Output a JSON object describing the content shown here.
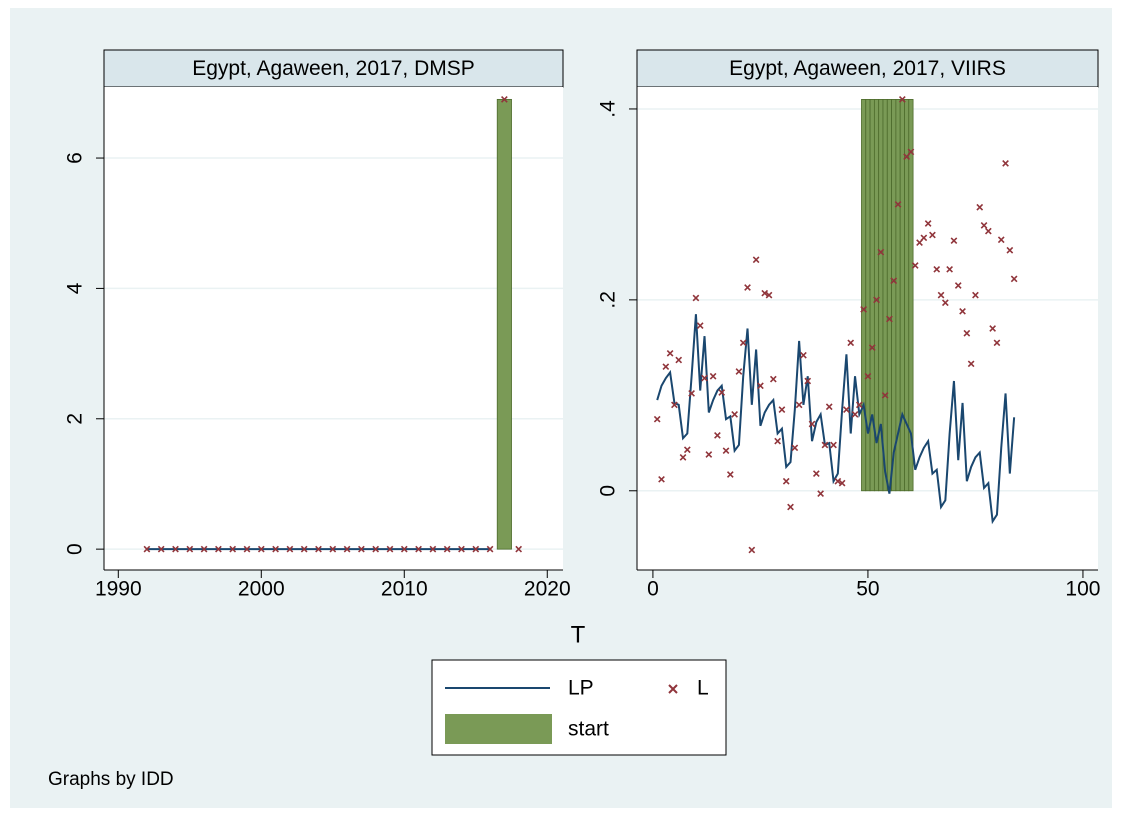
{
  "chart_data": [
    {
      "type": "combo",
      "title": "Egypt, Agaween, 2017, DMSP",
      "x": [
        1992,
        1993,
        1994,
        1995,
        1996,
        1997,
        1998,
        1999,
        2000,
        2001,
        2002,
        2003,
        2004,
        2005,
        2006,
        2007,
        2008,
        2009,
        2010,
        2011,
        2012,
        2013,
        2014,
        2015,
        2016,
        2017,
        2018
      ],
      "series": [
        {
          "name": "LP",
          "kind": "line",
          "color": "#1a476f",
          "values": [
            0,
            0,
            0,
            0,
            0,
            0,
            0,
            0,
            0,
            0,
            0,
            0,
            0,
            0,
            0,
            0,
            0,
            0,
            0,
            0,
            0,
            0,
            0,
            0,
            0,
            null,
            null
          ]
        },
        {
          "name": "L",
          "kind": "scatter",
          "color": "#90353b",
          "values": [
            0,
            0,
            0,
            0,
            0,
            0,
            0,
            0,
            0,
            0,
            0,
            0,
            0,
            0,
            0,
            0,
            0,
            0,
            0,
            0,
            0,
            0,
            0,
            0,
            0,
            6.9,
            0
          ]
        },
        {
          "name": "start",
          "kind": "bar",
          "color": "#7a9a56",
          "values": [
            null,
            null,
            null,
            null,
            null,
            null,
            null,
            null,
            null,
            null,
            null,
            null,
            null,
            null,
            null,
            null,
            null,
            null,
            null,
            null,
            null,
            null,
            null,
            null,
            null,
            6.9,
            null
          ]
        }
      ],
      "xlim": [
        1989,
        2021.1
      ],
      "xticks": [
        1990,
        2000,
        2010,
        2020
      ],
      "ylim": [
        -0.32,
        7.09
      ],
      "yticks": [
        0,
        2,
        4,
        6
      ],
      "grid": true
    },
    {
      "type": "combo",
      "title": "Egypt, Agaween, 2017, VIIRS",
      "x": [
        1,
        2,
        3,
        4,
        5,
        6,
        7,
        8,
        9,
        10,
        11,
        12,
        13,
        14,
        15,
        16,
        17,
        18,
        19,
        20,
        21,
        22,
        23,
        24,
        25,
        26,
        27,
        28,
        29,
        30,
        31,
        32,
        33,
        34,
        35,
        36,
        37,
        38,
        39,
        40,
        41,
        42,
        43,
        44,
        45,
        46,
        47,
        48,
        49,
        50,
        51,
        52,
        53,
        54,
        55,
        56,
        57,
        58,
        59,
        60,
        61,
        62,
        63,
        64,
        65,
        66,
        67,
        68,
        69,
        70,
        71,
        72,
        73,
        74,
        75,
        76,
        77,
        78,
        79,
        80,
        81,
        82,
        83,
        84
      ],
      "series": [
        {
          "name": "LP",
          "kind": "line",
          "color": "#1a476f",
          "values": [
            0.095,
            0.11,
            0.118,
            0.124,
            0.092,
            0.09,
            0.055,
            0.06,
            0.12,
            0.185,
            0.105,
            0.162,
            0.082,
            0.095,
            0.105,
            0.11,
            0.075,
            0.078,
            0.042,
            0.048,
            0.12,
            0.17,
            0.09,
            0.148,
            0.068,
            0.082,
            0.09,
            0.095,
            0.06,
            0.065,
            0.025,
            0.03,
            0.085,
            0.157,
            0.09,
            0.12,
            0.052,
            0.072,
            0.08,
            0.048,
            0.05,
            0.01,
            0.018,
            0.085,
            0.143,
            0.06,
            0.12,
            0.08,
            0.09,
            0.06,
            0.08,
            0.05,
            0.07,
            0.02,
            -0.003,
            0.04,
            0.06,
            0.08,
            0.07,
            0.06,
            0.022,
            0.035,
            0.045,
            0.052,
            0.018,
            0.022,
            -0.017,
            -0.01,
            0.06,
            0.115,
            0.032,
            0.092,
            0.01,
            0.025,
            0.035,
            0.04,
            0.003,
            0.008,
            -0.032,
            -0.025,
            0.045,
            0.102,
            0.018,
            0.077
          ]
        },
        {
          "name": "L",
          "kind": "scatter",
          "color": "#90353b",
          "values": [
            0.075,
            0.012,
            0.13,
            0.144,
            0.09,
            0.137,
            0.035,
            0.043,
            0.102,
            0.202,
            0.173,
            0.118,
            0.038,
            0.12,
            0.058,
            0.103,
            0.042,
            0.017,
            0.08,
            0.125,
            0.155,
            0.213,
            -0.062,
            0.242,
            0.11,
            0.207,
            0.205,
            0.117,
            0.052,
            0.085,
            0.01,
            -0.017,
            0.045,
            0.09,
            0.142,
            0.115,
            0.07,
            0.018,
            -0.003,
            0.048,
            0.088,
            0.048,
            0.01,
            0.008,
            0.085,
            0.155,
            0.08,
            0.09,
            0.19,
            0.12,
            0.15,
            0.2,
            0.25,
            0.1,
            0.18,
            0.22,
            0.3,
            0.41,
            0.35,
            0.355,
            0.236,
            0.26,
            0.265,
            0.28,
            0.268,
            0.232,
            0.205,
            0.197,
            0.232,
            0.262,
            0.215,
            0.188,
            0.165,
            0.133,
            0.205,
            0.297,
            0.278,
            0.272,
            0.17,
            0.155,
            0.263,
            0.343,
            0.252,
            0.222
          ]
        },
        {
          "name": "start",
          "kind": "bar",
          "color": "#7a9a56",
          "values": [
            null,
            null,
            null,
            null,
            null,
            null,
            null,
            null,
            null,
            null,
            null,
            null,
            null,
            null,
            null,
            null,
            null,
            null,
            null,
            null,
            null,
            null,
            null,
            null,
            null,
            null,
            null,
            null,
            null,
            null,
            null,
            null,
            null,
            null,
            null,
            null,
            null,
            null,
            null,
            null,
            null,
            null,
            null,
            null,
            null,
            null,
            null,
            null,
            0.41,
            0.41,
            0.41,
            0.41,
            0.41,
            0.41,
            0.41,
            0.41,
            0.41,
            0.41,
            0.41,
            0.41,
            null,
            null,
            null,
            null,
            null,
            null,
            null,
            null,
            null,
            null,
            null,
            null,
            null,
            null,
            null,
            null,
            null,
            null,
            null,
            null,
            null,
            null,
            null,
            null
          ]
        }
      ],
      "xlim": [
        -3.7,
        103.5
      ],
      "xticks": [
        0,
        50,
        100
      ],
      "ylim": [
        -0.083,
        0.423
      ],
      "yticks": [
        0,
        {
          "value": 0.2,
          "label": ".2"
        },
        {
          "value": 0.4,
          "label": ".4"
        }
      ],
      "grid": true
    }
  ],
  "xlabel": "T",
  "note": "Graphs by IDD"
}
